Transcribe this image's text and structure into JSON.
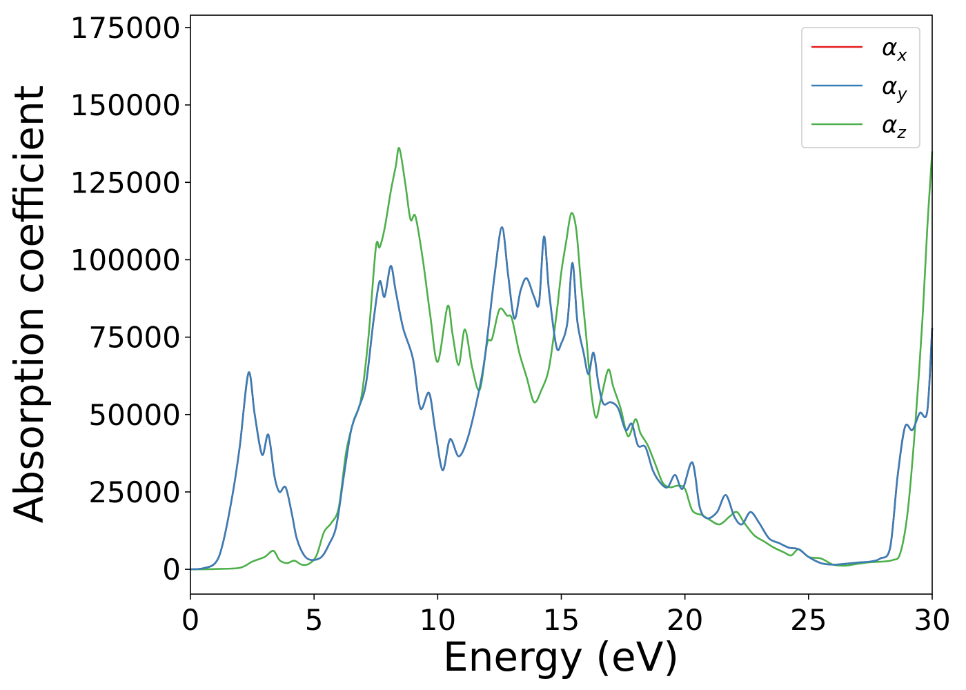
{
  "chart_data": {
    "type": "line",
    "title": "",
    "xlabel": "Energy (eV)",
    "ylabel": "Absorption coefficient",
    "xlim": [
      0,
      30
    ],
    "ylim": [
      -8000,
      179000
    ],
    "xticks": [
      0,
      5,
      10,
      15,
      20,
      25,
      30
    ],
    "yticks": [
      0,
      25000,
      50000,
      75000,
      100000,
      125000,
      150000,
      175000
    ],
    "grid": false,
    "legend_position": "top-right",
    "series": [
      {
        "name": "α",
        "subscript": "x",
        "color": "#e41a1c",
        "x": [
          0,
          0.5,
          1.0,
          1.3,
          1.7,
          2.0,
          2.35,
          2.6,
          2.9,
          3.15,
          3.4,
          3.6,
          3.85,
          4.1,
          4.3,
          4.6,
          4.9,
          5.3,
          5.6,
          5.9,
          6.2,
          6.5,
          6.8,
          7.1,
          7.4,
          7.65,
          7.85,
          8.1,
          8.3,
          8.6,
          9.0,
          9.3,
          9.65,
          9.9,
          10.2,
          10.5,
          10.85,
          11.2,
          11.6,
          11.9,
          12.3,
          12.6,
          12.85,
          13.1,
          13.35,
          13.6,
          13.9,
          14.1,
          14.3,
          14.5,
          14.8,
          15.0,
          15.25,
          15.45,
          15.65,
          15.9,
          16.1,
          16.3,
          16.5,
          16.7,
          17.0,
          17.3,
          17.6,
          17.85,
          18.1,
          18.4,
          18.7,
          19.0,
          19.3,
          19.6,
          19.9,
          20.3,
          20.6,
          20.9,
          21.3,
          21.65,
          22.0,
          22.3,
          22.65,
          23.0,
          23.4,
          23.8,
          24.2,
          24.6,
          25.0,
          25.5,
          26.0,
          26.5,
          27.0,
          27.5,
          27.9,
          28.3,
          28.6,
          28.9,
          29.2,
          29.5,
          29.8,
          30.0
        ],
        "y": [
          0,
          300,
          2000,
          8000,
          24000,
          40000,
          63500,
          50000,
          37000,
          43500,
          30000,
          25000,
          26500,
          18000,
          10000,
          4500,
          3000,
          4000,
          8000,
          14000,
          30000,
          45000,
          52000,
          60000,
          80000,
          93000,
          88000,
          98000,
          90000,
          78000,
          68000,
          52000,
          57000,
          45000,
          32000,
          42000,
          36500,
          42000,
          55000,
          68000,
          95000,
          110500,
          95000,
          81000,
          90000,
          94000,
          88000,
          86000,
          107500,
          90000,
          72000,
          73000,
          80000,
          99000,
          80000,
          70000,
          63000,
          70000,
          60000,
          53500,
          54000,
          52000,
          45000,
          47000,
          40000,
          39500,
          32000,
          28000,
          26500,
          30500,
          26000,
          34500,
          20000,
          16500,
          18500,
          24000,
          17000,
          14500,
          18500,
          15000,
          10000,
          8500,
          7000,
          6500,
          4000,
          2000,
          1500,
          1800,
          2200,
          2500,
          3500,
          7000,
          30000,
          46000,
          45000,
          50500,
          51000,
          78000
        ]
      },
      {
        "name": "α",
        "subscript": "y",
        "color": "#377eb8",
        "x": [
          0,
          0.5,
          1.0,
          1.3,
          1.7,
          2.0,
          2.35,
          2.6,
          2.9,
          3.15,
          3.4,
          3.6,
          3.85,
          4.1,
          4.3,
          4.6,
          4.9,
          5.3,
          5.6,
          5.9,
          6.2,
          6.5,
          6.8,
          7.1,
          7.4,
          7.65,
          7.85,
          8.1,
          8.3,
          8.6,
          9.0,
          9.3,
          9.65,
          9.9,
          10.2,
          10.5,
          10.85,
          11.2,
          11.6,
          11.9,
          12.3,
          12.6,
          12.85,
          13.1,
          13.35,
          13.6,
          13.9,
          14.1,
          14.3,
          14.5,
          14.8,
          15.0,
          15.25,
          15.45,
          15.65,
          15.9,
          16.1,
          16.3,
          16.5,
          16.7,
          17.0,
          17.3,
          17.6,
          17.85,
          18.1,
          18.4,
          18.7,
          19.0,
          19.3,
          19.6,
          19.9,
          20.3,
          20.6,
          20.9,
          21.3,
          21.65,
          22.0,
          22.3,
          22.65,
          23.0,
          23.4,
          23.8,
          24.2,
          24.6,
          25.0,
          25.5,
          26.0,
          26.5,
          27.0,
          27.5,
          27.9,
          28.3,
          28.6,
          28.9,
          29.2,
          29.5,
          29.8,
          30.0
        ],
        "y": [
          0,
          300,
          2000,
          8000,
          24000,
          40000,
          63500,
          50000,
          37000,
          43500,
          30000,
          25000,
          26500,
          18000,
          10000,
          4500,
          3000,
          4000,
          8000,
          14000,
          30000,
          45000,
          52000,
          60000,
          80000,
          93000,
          88000,
          98000,
          90000,
          78000,
          68000,
          52000,
          57000,
          45000,
          32000,
          42000,
          36500,
          42000,
          55000,
          68000,
          95000,
          110500,
          95000,
          81000,
          90000,
          94000,
          88000,
          86000,
          107500,
          90000,
          72000,
          73000,
          80000,
          99000,
          80000,
          70000,
          63000,
          70000,
          60000,
          53500,
          54000,
          52000,
          45000,
          47000,
          40000,
          39500,
          32000,
          28000,
          26500,
          30500,
          26000,
          34500,
          20000,
          16500,
          18500,
          24000,
          17000,
          14500,
          18500,
          15000,
          10000,
          8500,
          7000,
          6500,
          4000,
          2000,
          1500,
          1800,
          2200,
          2500,
          3500,
          7000,
          30000,
          46000,
          45000,
          50500,
          51000,
          78000
        ]
      },
      {
        "name": "α",
        "subscript": "z",
        "color": "#4daf4a",
        "x": [
          0,
          1.0,
          2.0,
          2.5,
          3.0,
          3.35,
          3.6,
          3.9,
          4.2,
          4.5,
          4.8,
          5.1,
          5.4,
          5.7,
          6.0,
          6.3,
          6.6,
          6.9,
          7.2,
          7.5,
          7.65,
          7.85,
          8.1,
          8.3,
          8.45,
          8.7,
          8.9,
          9.1,
          9.4,
          9.7,
          10.0,
          10.4,
          10.6,
          10.85,
          11.1,
          11.4,
          11.7,
          12.0,
          12.2,
          12.5,
          12.8,
          13.0,
          13.3,
          13.6,
          13.9,
          14.2,
          14.5,
          14.8,
          15.0,
          15.2,
          15.4,
          15.6,
          15.8,
          16.0,
          16.2,
          16.4,
          16.6,
          16.9,
          17.1,
          17.4,
          17.7,
          18.0,
          18.2,
          18.5,
          18.8,
          19.1,
          19.4,
          19.7,
          20.0,
          20.3,
          20.7,
          21.0,
          21.4,
          21.8,
          22.1,
          22.4,
          22.8,
          23.2,
          23.6,
          24.0,
          24.3,
          24.6,
          25.0,
          25.5,
          26.0,
          26.5,
          27.0,
          27.5,
          28.0,
          28.4,
          28.7,
          29.0,
          29.3,
          29.6,
          29.8,
          30.0
        ],
        "y": [
          0,
          100,
          500,
          2500,
          4000,
          6000,
          3000,
          2000,
          2800,
          1500,
          1800,
          4500,
          12000,
          15000,
          20000,
          38000,
          48000,
          55000,
          75000,
          104000,
          104000,
          110000,
          122000,
          130000,
          136000,
          124000,
          113000,
          114000,
          100000,
          82000,
          67000,
          85000,
          76000,
          66000,
          77500,
          65000,
          58000,
          73000,
          74500,
          84000,
          82000,
          81000,
          70000,
          62000,
          54000,
          58000,
          65000,
          82000,
          96000,
          106000,
          115000,
          110000,
          92000,
          76000,
          58000,
          49000,
          55000,
          64500,
          59000,
          52000,
          43000,
          48500,
          44000,
          40000,
          34000,
          28000,
          26500,
          27000,
          26000,
          19000,
          17500,
          16000,
          14500,
          17000,
          18500,
          15000,
          11000,
          9000,
          7000,
          5500,
          4500,
          6500,
          4000,
          3500,
          1500,
          1200,
          1800,
          2300,
          2500,
          3000,
          5000,
          18000,
          45000,
          80000,
          110000,
          135000
        ]
      }
    ]
  }
}
